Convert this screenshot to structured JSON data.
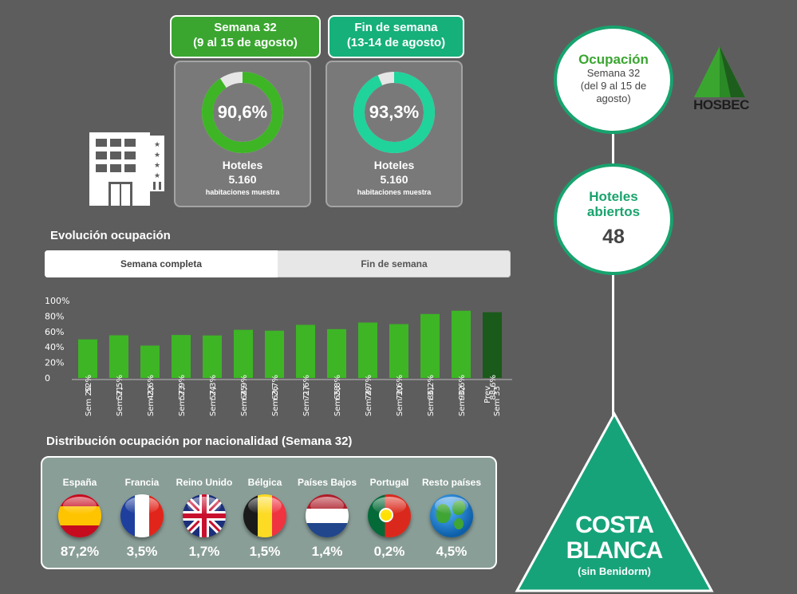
{
  "week_banner": {
    "line1": "Semana 32",
    "line2": "(9 al 15 de agosto)"
  },
  "weekend_banner": {
    "line1": "Fin de semana",
    "line2": "(13-14 de agosto)"
  },
  "week_card": {
    "value": "90,6%",
    "fraction": 0.906,
    "label": "Hoteles",
    "count": "5.160",
    "sublabel": "habitaciones muestra",
    "color": "#3db525"
  },
  "weekend_card": {
    "value": "93,3%",
    "fraction": 0.933,
    "label": "Hoteles",
    "count": "5.160",
    "sublabel": "habitaciones muestra",
    "color": "#1fd39a"
  },
  "evolution": {
    "title": "Evolución ocupación",
    "tabs": [
      "Semana completa",
      "Fin de semana"
    ],
    "active_tab": 0
  },
  "chart_data": {
    "type": "bar",
    "categories": [
      "Sem 20",
      "Sem 21",
      "Sem 22",
      "Sem 23",
      "Sem 24",
      "Sem 25",
      "Sem 26",
      "Sem 27",
      "Sem 28",
      "Sem 29",
      "Sem 30",
      "Sem 31",
      "Sem 32",
      "Prev Sem 33"
    ],
    "values": [
      52,
      57.5,
      43.6,
      57.9,
      57.3,
      64.9,
      63.7,
      71.6,
      65.8,
      74.7,
      72.6,
      86.2,
      90.6,
      88.6
    ],
    "value_labels": [
      "52%",
      "57,5%",
      "43,6%",
      "57,9%",
      "57,3%",
      "64,9%",
      "63,7%",
      "71,6%",
      "65,8%",
      "74,7%",
      "72,6%",
      "86,2%",
      "90,6%",
      "88,6%"
    ],
    "yticks": [
      "0",
      "20%",
      "40%",
      "60%",
      "80%",
      "100%"
    ],
    "ylim": [
      0,
      100
    ],
    "bar_color": "#3db525",
    "forecast_color": "#1a5a1a"
  },
  "nationality": {
    "title": "Distribución ocupación por nacionalidad (Semana 32)",
    "items": [
      {
        "name": "España",
        "value": "87,2%"
      },
      {
        "name": "Francia",
        "value": "3,5%"
      },
      {
        "name": "Reino Unido",
        "value": "1,7%"
      },
      {
        "name": "Bélgica",
        "value": "1,5%"
      },
      {
        "name": "Países Bajos",
        "value": "1,4%"
      },
      {
        "name": "Portugal",
        "value": "0,2%"
      },
      {
        "name": "Resto países",
        "value": "4,5%"
      }
    ]
  },
  "occupancy_circle": {
    "title": "Ocupación",
    "line1": "Semana 32",
    "line2": "(del 9 al 15 de",
    "line3": "agosto)"
  },
  "hotels_circle": {
    "title1": "Hoteles",
    "title2": "abiertos",
    "value": "48"
  },
  "logo": {
    "text": "HOSBEC"
  },
  "region": {
    "line1": "COSTA",
    "line2": "BLANCA",
    "sub": "(sin Benidorm)",
    "color": "#17a37a"
  }
}
